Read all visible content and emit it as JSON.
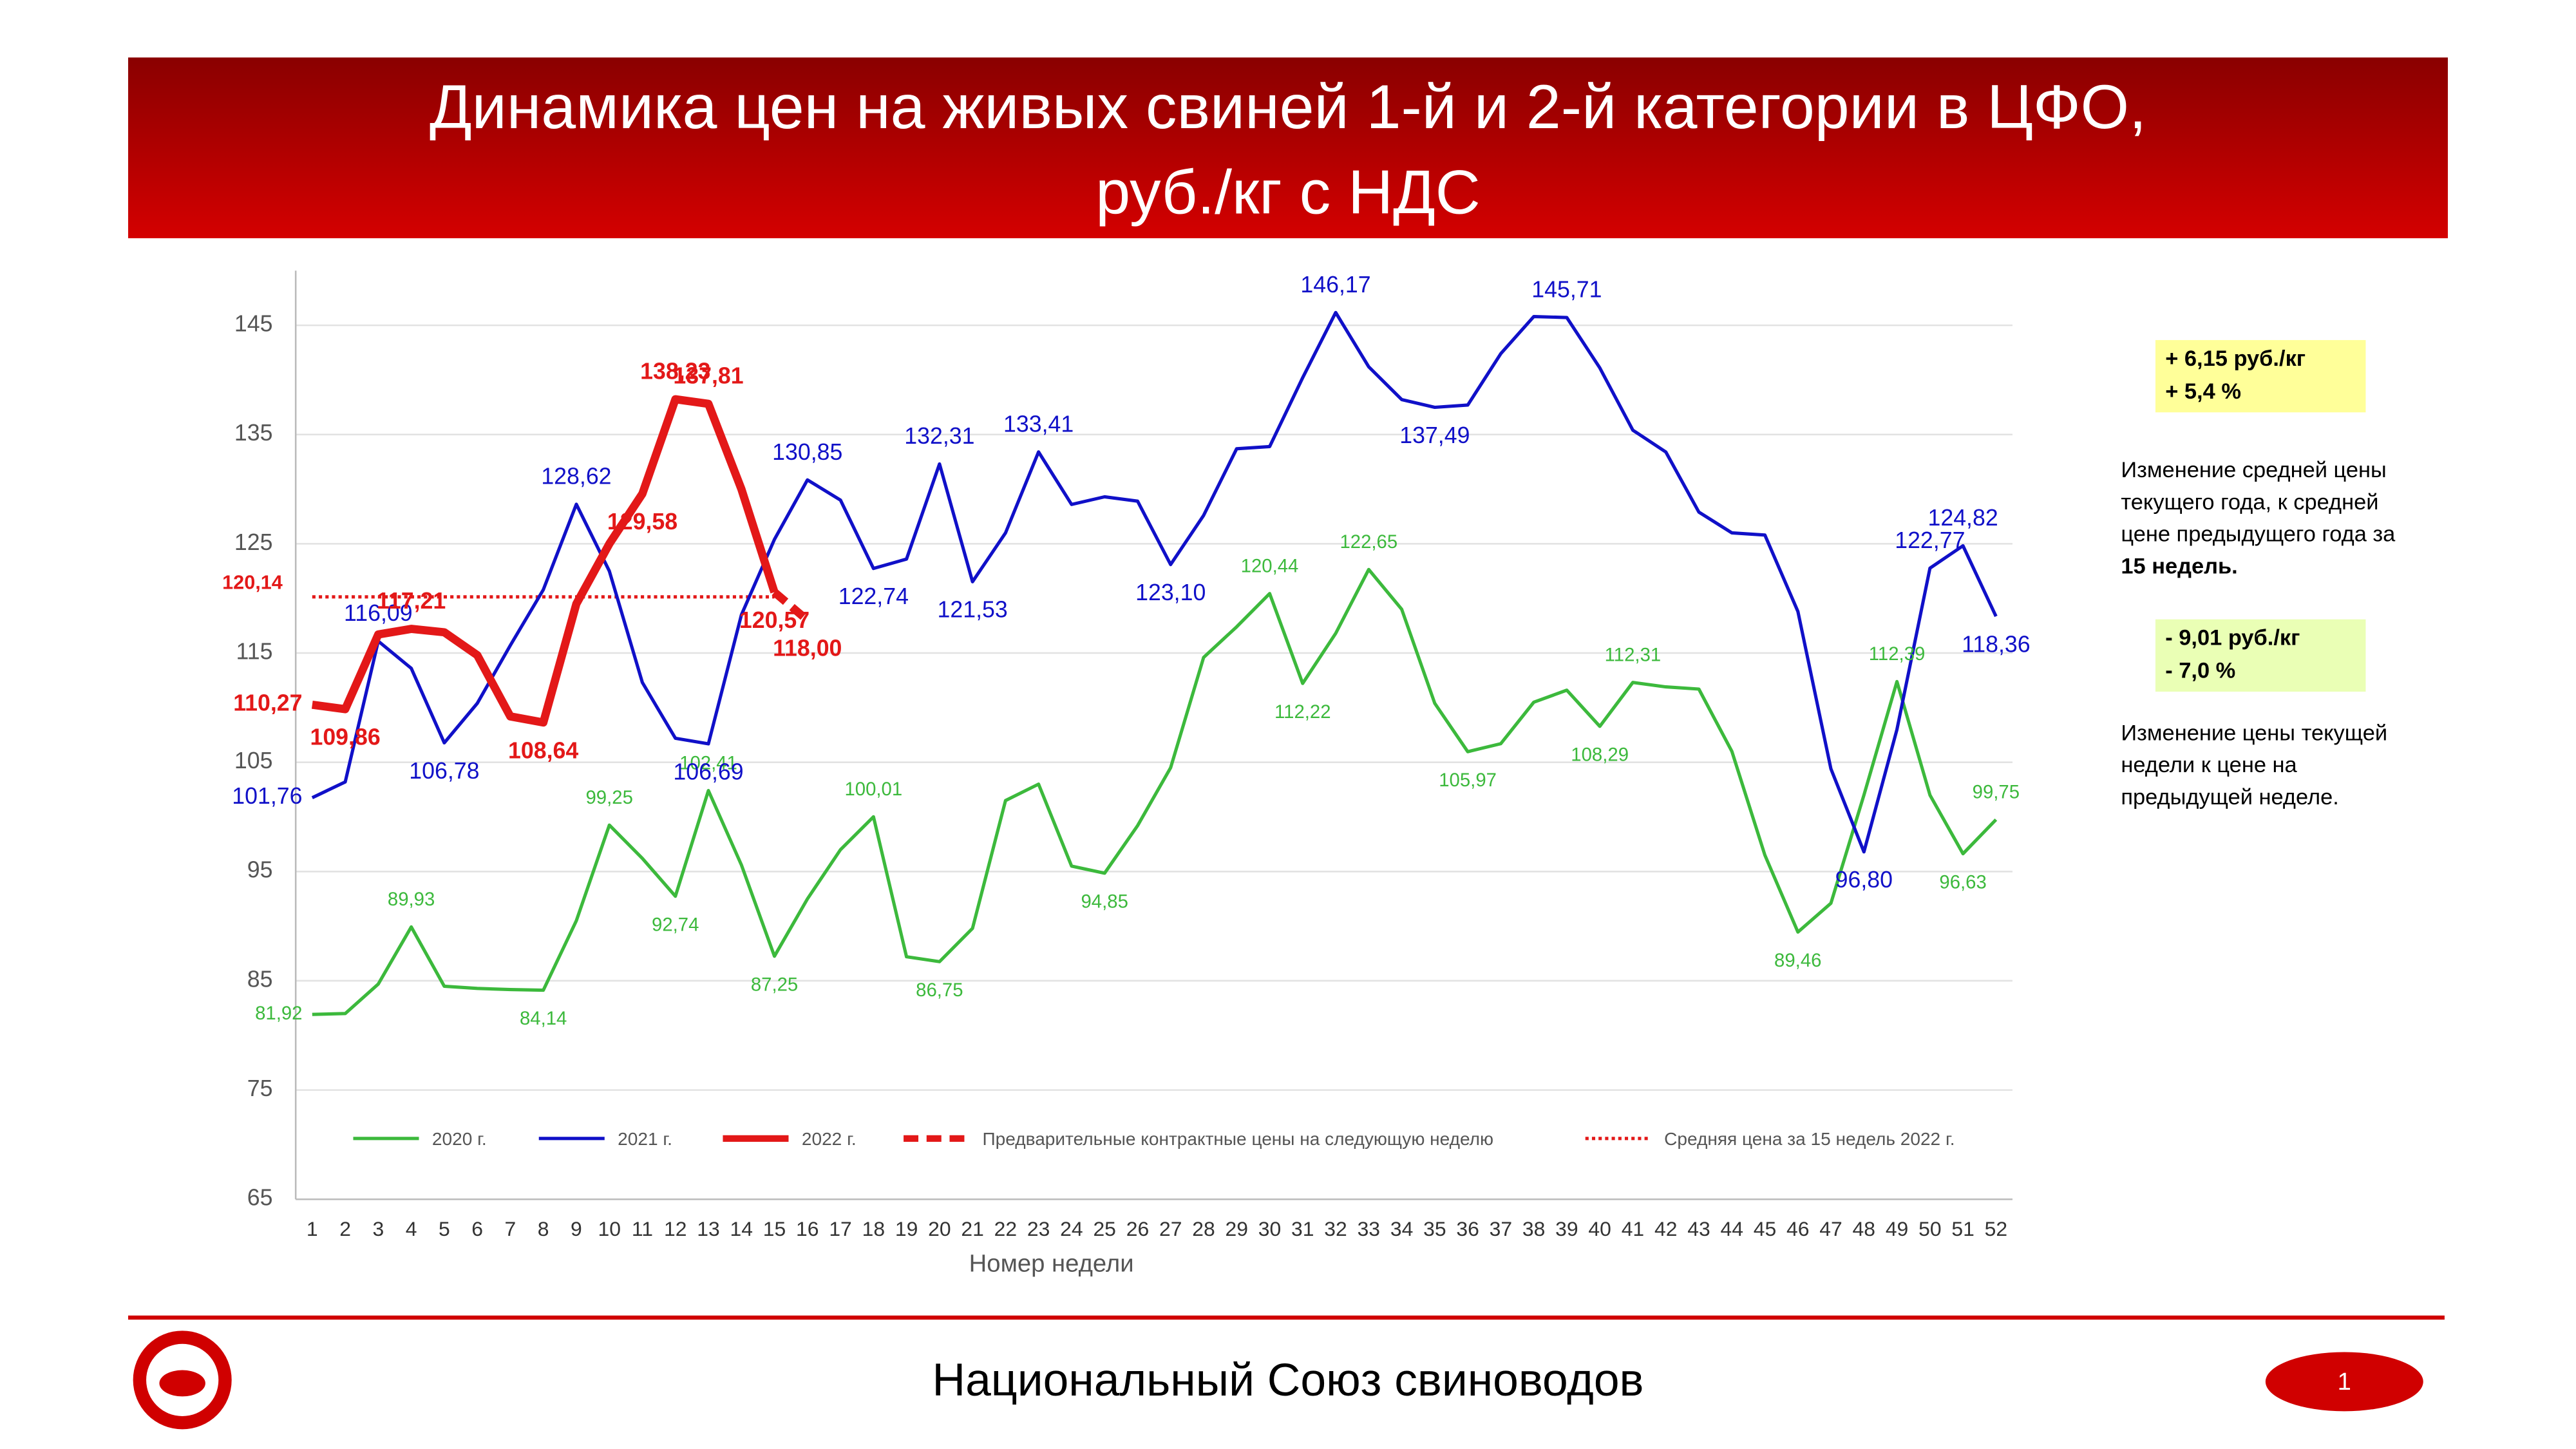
{
  "chart_data": {
    "type": "line",
    "title": [
      "Динамика цен на живых свиней 1-й и 2-й категории в ЦФО,",
      "руб./кг с НДС"
    ],
    "x_label": "Номер недели",
    "categories": [
      1,
      2,
      3,
      4,
      5,
      6,
      7,
      8,
      9,
      10,
      11,
      12,
      13,
      14,
      15,
      16,
      17,
      18,
      19,
      20,
      21,
      22,
      23,
      24,
      25,
      26,
      27,
      28,
      29,
      30,
      31,
      32,
      33,
      34,
      35,
      36,
      37,
      38,
      39,
      40,
      41,
      42,
      43,
      44,
      45,
      46,
      47,
      48,
      49,
      50,
      51,
      52
    ],
    "ylim": [
      65,
      150
    ],
    "yticks": [
      65,
      75,
      85,
      95,
      105,
      115,
      125,
      135,
      145
    ],
    "grid": true,
    "series": [
      {
        "name": "2020 г.",
        "color": "#3cb93c",
        "line_style": "solid",
        "bold_labels": false,
        "values": [
          81.92,
          82.0,
          84.7,
          89.93,
          84.5,
          84.3,
          84.2,
          84.14,
          90.5,
          99.25,
          96.2,
          92.74,
          102.41,
          95.6,
          87.25,
          92.5,
          97.0,
          100.01,
          87.2,
          86.75,
          89.8,
          101.5,
          103.0,
          95.5,
          94.85,
          99.2,
          104.5,
          114.6,
          117.4,
          120.44,
          112.22,
          116.8,
          122.65,
          119.0,
          110.4,
          105.97,
          106.7,
          110.5,
          111.6,
          108.29,
          112.31,
          111.9,
          111.7,
          106.0,
          96.5,
          89.46,
          92.1,
          102.0,
          112.39,
          102.0,
          96.63,
          99.75
        ],
        "value_labels": [
          "81,92",
          null,
          null,
          "89,93",
          null,
          null,
          null,
          "84,14",
          null,
          "99,25",
          null,
          "92,74",
          "102,41",
          null,
          "87,25",
          null,
          null,
          "100,01",
          null,
          "86,75",
          null,
          null,
          null,
          null,
          "94,85",
          null,
          null,
          null,
          null,
          "120,44",
          "112,22",
          null,
          "122,65",
          null,
          null,
          "105,97",
          null,
          null,
          null,
          "108,29",
          "112,31",
          null,
          null,
          null,
          null,
          "89,46",
          null,
          null,
          "112,39",
          null,
          "96,63",
          "99,75"
        ]
      },
      {
        "name": "2021 г.",
        "color": "#1010c8",
        "line_style": "solid",
        "bold_labels": false,
        "values": [
          101.76,
          103.2,
          116.09,
          113.6,
          106.78,
          110.4,
          115.7,
          120.8,
          128.62,
          122.5,
          112.3,
          107.2,
          106.69,
          118.5,
          125.4,
          130.85,
          129.0,
          122.74,
          123.6,
          132.31,
          121.53,
          126.0,
          133.41,
          128.6,
          129.3,
          128.9,
          123.1,
          127.6,
          133.7,
          133.9,
          140.2,
          146.17,
          141.2,
          138.2,
          137.49,
          137.7,
          142.4,
          145.8,
          145.71,
          141.1,
          135.4,
          133.4,
          127.9,
          126.0,
          125.8,
          118.8,
          104.4,
          96.8,
          108.0,
          122.77,
          124.82,
          118.36
        ],
        "value_labels": [
          "101,76",
          null,
          "116,09",
          null,
          "106,78",
          null,
          null,
          null,
          "128,62",
          null,
          null,
          null,
          "106,69",
          null,
          null,
          "130,85",
          null,
          "122,74",
          null,
          "132,31",
          "121,53",
          null,
          "133,41",
          null,
          null,
          null,
          "123,10",
          null,
          null,
          null,
          null,
          "146,17",
          null,
          null,
          "137,49",
          null,
          null,
          null,
          "145,71",
          null,
          null,
          null,
          null,
          null,
          null,
          null,
          null,
          "96,80",
          null,
          "122,77",
          "124,82",
          "118,36"
        ]
      },
      {
        "name": "2022 г.",
        "color": "#e31818",
        "line_style": "solid",
        "bold_labels": true,
        "values": [
          110.27,
          109.86,
          116.7,
          117.21,
          116.9,
          114.8,
          109.2,
          108.64,
          119.5,
          125.0,
          129.58,
          138.23,
          137.81,
          130.0,
          120.57,
          null,
          null,
          null,
          null,
          null,
          null,
          null,
          null,
          null,
          null,
          null,
          null,
          null,
          null,
          null,
          null,
          null,
          null,
          null,
          null,
          null,
          null,
          null,
          null,
          null,
          null,
          null,
          null,
          null,
          null,
          null,
          null,
          null,
          null,
          null,
          null,
          null
        ],
        "value_labels": [
          "110,27",
          "109,86",
          null,
          "117,21",
          null,
          null,
          null,
          "108,64",
          null,
          null,
          "129,58",
          "138,23",
          "137,81",
          null,
          "120,57",
          null,
          null,
          null,
          null,
          null,
          null,
          null,
          null,
          null,
          null,
          null,
          null,
          null,
          null,
          null,
          null,
          null,
          null,
          null,
          null,
          null,
          null,
          null,
          null,
          null,
          null,
          null,
          null,
          null,
          null,
          null,
          null,
          null,
          null,
          null,
          null,
          null
        ]
      },
      {
        "name": "Предварительные контрактные цены на следующую неделю",
        "color": "#e31818",
        "line_style": "dashed",
        "bold_labels": true,
        "values": [
          null,
          null,
          null,
          null,
          null,
          null,
          null,
          null,
          null,
          null,
          null,
          null,
          null,
          null,
          120.57,
          118.0,
          null,
          null,
          null,
          null,
          null,
          null,
          null,
          null,
          null,
          null,
          null,
          null,
          null,
          null,
          null,
          null,
          null,
          null,
          null,
          null,
          null,
          null,
          null,
          null,
          null,
          null,
          null,
          null,
          null,
          null,
          null,
          null,
          null,
          null,
          null,
          null
        ],
        "value_labels": [
          null,
          null,
          null,
          null,
          null,
          null,
          null,
          null,
          null,
          null,
          null,
          null,
          null,
          null,
          null,
          "118,00",
          null,
          null,
          null,
          null,
          null,
          null,
          null,
          null,
          null,
          null,
          null,
          null,
          null,
          null,
          null,
          null,
          null,
          null,
          null,
          null,
          null,
          null,
          null,
          null,
          null,
          null,
          null,
          null,
          null,
          null,
          null,
          null,
          null,
          null,
          null,
          null
        ]
      }
    ],
    "reference": {
      "name": "Средняя цена за 15 недель 2022 г.",
      "value": 120.14,
      "value_label": "120,14",
      "color": "#e31818",
      "line_style": "dotted"
    },
    "notes": [
      {
        "box": [
          "+ 6,15 руб./кг",
          "+ 5,4 %"
        ],
        "box_color": "#ffff99",
        "text": [
          "Изменение средней цены",
          "текущего года, к средней",
          "цене предыдущего года за"
        ],
        "bold_text": "15 недель."
      },
      {
        "box": [
          "- 9,01 руб./кг",
          "- 7,0 %"
        ],
        "box_color": "#eaffb5",
        "text": [
          "Изменение цены текущей",
          "недели к цене на",
          "предыдущей неделе."
        ]
      }
    ],
    "footer": "Национальный Союз свиноводов",
    "page": 1
  }
}
